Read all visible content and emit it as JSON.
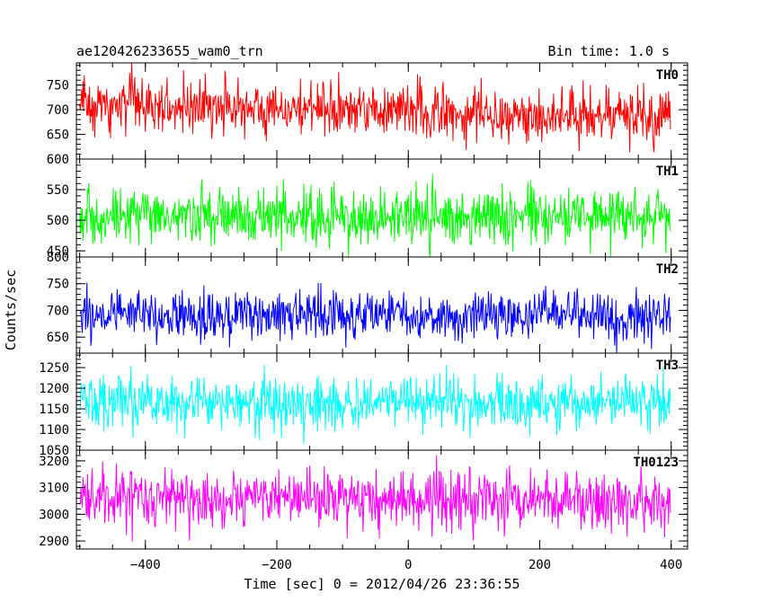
{
  "header": {
    "title": "ae120426233655_wam0_trn",
    "bin_time": "Bin time: 1.0 s"
  },
  "chart_data": {
    "type": "line",
    "xlabel": "Time [sec] 0 = 2012/04/26 23:36:55",
    "ylabel": "Counts/sec",
    "xlim": [
      -505,
      425
    ],
    "x_ticks": [
      -400,
      -200,
      0,
      200,
      400
    ],
    "x_tick_labels": [
      "−400",
      "−200",
      "0",
      "200",
      "400"
    ],
    "x_start": -500,
    "x_end": 399,
    "x_step": 1,
    "panels": [
      {
        "label": "TH0",
        "color": "#ff0000",
        "ylim": [
          600,
          795
        ],
        "y_ticks": [
          650,
          700,
          750
        ],
        "y_tick_labels": [
          "650",
          "700",
          "750"
        ],
        "edge_labels": [
          "600"
        ],
        "mean_start": 712,
        "mean_end": 685,
        "spread": 27
      },
      {
        "label": "TH1",
        "color": "#00ff00",
        "ylim": [
          440,
          600
        ],
        "y_ticks": [
          450,
          500,
          550
        ],
        "y_tick_labels": [
          "450",
          "500",
          "550"
        ],
        "edge_labels": [],
        "mean_start": 503,
        "mean_end": 508,
        "spread": 23
      },
      {
        "label": "TH2",
        "color": "#0000ff",
        "ylim": [
          620,
          800
        ],
        "y_ticks": [
          650,
          700,
          750
        ],
        "y_tick_labels": [
          "650",
          "700",
          "750"
        ],
        "edge_labels": [
          "800"
        ],
        "mean_start": 690,
        "mean_end": 692,
        "spread": 22
      },
      {
        "label": "TH3",
        "color": "#00ffff",
        "ylim": [
          1050,
          1285
        ],
        "y_ticks": [
          1100,
          1150,
          1200,
          1250
        ],
        "y_tick_labels": [
          "1100",
          "1150",
          "1200",
          "1250"
        ],
        "edge_labels": [
          "1050"
        ],
        "mean_start": 1165,
        "mean_end": 1165,
        "spread": 33
      },
      {
        "label": "TH0123",
        "color": "#ff00ff",
        "ylim": [
          2870,
          3240
        ],
        "y_ticks": [
          2900,
          3000,
          3100,
          3200
        ],
        "y_tick_labels": [
          "2900",
          "3000",
          "3100",
          "3200"
        ],
        "edge_labels": [],
        "mean_start": 3065,
        "mean_end": 3045,
        "spread": 55
      }
    ]
  }
}
